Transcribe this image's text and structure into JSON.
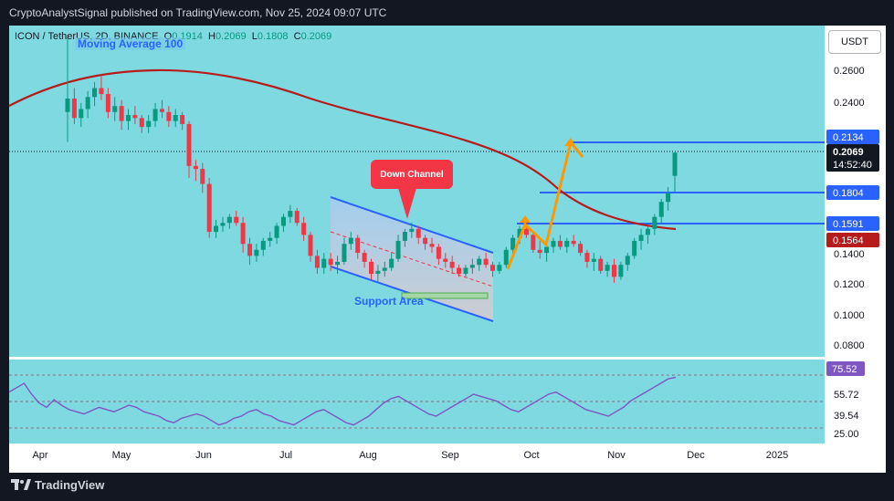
{
  "header": {
    "publisher_line": "CryptoAnalystSignal published on TradingView.com, Nov 25, 2024 09:07 UTC"
  },
  "legend": {
    "symbol": "ICON / TetherUS, 2D, BINANCE",
    "open_label": "O",
    "open": "0.1914",
    "high_label": "H",
    "high": "0.2069",
    "low_label": "L",
    "low": "0.1808",
    "close_label": "C",
    "close": "0.2069"
  },
  "indicator": {
    "ma_label": "Moving Average 100"
  },
  "currency_button": "USDT",
  "annotations": {
    "down_channel": "Down Channel",
    "support_area": "Support Area"
  },
  "price_axis": {
    "ticks": [
      "0.2600",
      "0.2400",
      "0.1400",
      "0.1200",
      "0.1000",
      "0.0800"
    ],
    "badges": {
      "level_top": "0.2134",
      "current_price": "0.2069",
      "countdown": "14:52:40",
      "level_mid": "0.1804",
      "level_low": "0.1591",
      "ma_value": "0.1564"
    }
  },
  "osc_axis": {
    "value_badge": "75.52",
    "ticks": [
      "55.72",
      "39.54",
      "25.00"
    ]
  },
  "time_axis": {
    "labels": [
      "Apr",
      "May",
      "Jun",
      "Jul",
      "Aug",
      "Sep",
      "Oct",
      "Nov",
      "Dec",
      "2025"
    ]
  },
  "footer": {
    "brand": "TradingView"
  },
  "chart_data": {
    "type": "candlestick",
    "symbol": "ICON / TetherUS",
    "interval": "2D",
    "exchange": "BINANCE",
    "y_range": [
      0.07,
      0.29
    ],
    "horizontal_levels": [
      0.2134,
      0.1804,
      0.1591
    ],
    "moving_average": {
      "name": "Moving Average 100",
      "last_value": 0.1564
    },
    "last_close": 0.2069,
    "candles_ohlc": [
      [
        0.234,
        0.284,
        0.214,
        0.243
      ],
      [
        0.243,
        0.25,
        0.226,
        0.23
      ],
      [
        0.23,
        0.24,
        0.224,
        0.236
      ],
      [
        0.236,
        0.248,
        0.23,
        0.244
      ],
      [
        0.244,
        0.254,
        0.238,
        0.25
      ],
      [
        0.25,
        0.258,
        0.242,
        0.246
      ],
      [
        0.246,
        0.25,
        0.23,
        0.234
      ],
      [
        0.234,
        0.244,
        0.228,
        0.238
      ],
      [
        0.238,
        0.242,
        0.222,
        0.228
      ],
      [
        0.228,
        0.236,
        0.222,
        0.232
      ],
      [
        0.232,
        0.238,
        0.226,
        0.23
      ],
      [
        0.23,
        0.232,
        0.22,
        0.224
      ],
      [
        0.224,
        0.232,
        0.22,
        0.228
      ],
      [
        0.228,
        0.24,
        0.224,
        0.236
      ],
      [
        0.236,
        0.242,
        0.23,
        0.234
      ],
      [
        0.234,
        0.238,
        0.224,
        0.228
      ],
      [
        0.228,
        0.236,
        0.224,
        0.232
      ],
      [
        0.232,
        0.234,
        0.222,
        0.226
      ],
      [
        0.226,
        0.228,
        0.19,
        0.198
      ],
      [
        0.198,
        0.202,
        0.188,
        0.196
      ],
      [
        0.196,
        0.2,
        0.18,
        0.186
      ],
      [
        0.186,
        0.19,
        0.15,
        0.154
      ],
      [
        0.154,
        0.162,
        0.15,
        0.158
      ],
      [
        0.158,
        0.164,
        0.154,
        0.16
      ],
      [
        0.16,
        0.166,
        0.156,
        0.164
      ],
      [
        0.164,
        0.168,
        0.158,
        0.16
      ],
      [
        0.16,
        0.164,
        0.14,
        0.146
      ],
      [
        0.146,
        0.15,
        0.132,
        0.138
      ],
      [
        0.138,
        0.146,
        0.134,
        0.142
      ],
      [
        0.142,
        0.15,
        0.138,
        0.148
      ],
      [
        0.148,
        0.154,
        0.144,
        0.15
      ],
      [
        0.15,
        0.16,
        0.146,
        0.158
      ],
      [
        0.158,
        0.166,
        0.154,
        0.164
      ],
      [
        0.164,
        0.172,
        0.16,
        0.168
      ],
      [
        0.168,
        0.17,
        0.158,
        0.16
      ],
      [
        0.16,
        0.164,
        0.148,
        0.152
      ],
      [
        0.152,
        0.154,
        0.134,
        0.138
      ],
      [
        0.138,
        0.142,
        0.126,
        0.13
      ],
      [
        0.13,
        0.14,
        0.126,
        0.136
      ],
      [
        0.136,
        0.14,
        0.128,
        0.132
      ],
      [
        0.132,
        0.138,
        0.126,
        0.134
      ],
      [
        0.134,
        0.15,
        0.132,
        0.146
      ],
      [
        0.146,
        0.154,
        0.142,
        0.15
      ],
      [
        0.15,
        0.152,
        0.136,
        0.14
      ],
      [
        0.14,
        0.142,
        0.13,
        0.134
      ],
      [
        0.134,
        0.136,
        0.122,
        0.126
      ],
      [
        0.126,
        0.132,
        0.12,
        0.128
      ],
      [
        0.128,
        0.134,
        0.124,
        0.13
      ],
      [
        0.13,
        0.14,
        0.128,
        0.136
      ],
      [
        0.136,
        0.152,
        0.134,
        0.148
      ],
      [
        0.148,
        0.156,
        0.144,
        0.154
      ],
      [
        0.154,
        0.16,
        0.15,
        0.156
      ],
      [
        0.156,
        0.158,
        0.146,
        0.15
      ],
      [
        0.15,
        0.152,
        0.142,
        0.146
      ],
      [
        0.146,
        0.15,
        0.14,
        0.144
      ],
      [
        0.144,
        0.146,
        0.132,
        0.136
      ],
      [
        0.136,
        0.14,
        0.13,
        0.134
      ],
      [
        0.134,
        0.138,
        0.126,
        0.13
      ],
      [
        0.13,
        0.132,
        0.124,
        0.126
      ],
      [
        0.126,
        0.132,
        0.124,
        0.13
      ],
      [
        0.13,
        0.136,
        0.126,
        0.132
      ],
      [
        0.132,
        0.138,
        0.128,
        0.136
      ],
      [
        0.136,
        0.14,
        0.13,
        0.132
      ],
      [
        0.132,
        0.134,
        0.124,
        0.128
      ],
      [
        0.128,
        0.134,
        0.126,
        0.132
      ],
      [
        0.132,
        0.144,
        0.13,
        0.142
      ],
      [
        0.142,
        0.152,
        0.138,
        0.15
      ],
      [
        0.15,
        0.158,
        0.146,
        0.156
      ],
      [
        0.156,
        0.16,
        0.15,
        0.152
      ],
      [
        0.152,
        0.154,
        0.14,
        0.142
      ],
      [
        0.142,
        0.148,
        0.136,
        0.14
      ],
      [
        0.14,
        0.146,
        0.134,
        0.144
      ],
      [
        0.144,
        0.15,
        0.14,
        0.148
      ],
      [
        0.148,
        0.152,
        0.142,
        0.144
      ],
      [
        0.144,
        0.15,
        0.14,
        0.148
      ],
      [
        0.148,
        0.152,
        0.144,
        0.146
      ],
      [
        0.146,
        0.148,
        0.138,
        0.14
      ],
      [
        0.14,
        0.142,
        0.13,
        0.134
      ],
      [
        0.134,
        0.14,
        0.128,
        0.136
      ],
      [
        0.136,
        0.138,
        0.126,
        0.128
      ],
      [
        0.128,
        0.134,
        0.124,
        0.132
      ],
      [
        0.132,
        0.136,
        0.12,
        0.124
      ],
      [
        0.124,
        0.134,
        0.122,
        0.132
      ],
      [
        0.132,
        0.14,
        0.128,
        0.138
      ],
      [
        0.138,
        0.15,
        0.136,
        0.148
      ],
      [
        0.148,
        0.156,
        0.142,
        0.152
      ],
      [
        0.152,
        0.158,
        0.146,
        0.156
      ],
      [
        0.156,
        0.166,
        0.152,
        0.164
      ],
      [
        0.164,
        0.176,
        0.16,
        0.174
      ],
      [
        0.174,
        0.184,
        0.168,
        0.18
      ],
      [
        0.1914,
        0.2069,
        0.1808,
        0.2069
      ]
    ]
  },
  "osc_data": {
    "value": 75.52,
    "levels": [
      70,
      50,
      30
    ],
    "series": [
      62,
      66,
      70,
      60,
      52,
      48,
      55,
      50,
      46,
      44,
      42,
      45,
      48,
      46,
      44,
      47,
      50,
      48,
      44,
      42,
      40,
      36,
      34,
      38,
      40,
      42,
      40,
      36,
      32,
      34,
      38,
      40,
      44,
      46,
      42,
      40,
      36,
      34,
      32,
      36,
      40,
      44,
      46,
      42,
      38,
      34,
      32,
      36,
      40,
      46,
      52,
      56,
      58,
      54,
      50,
      46,
      42,
      40,
      44,
      48,
      52,
      56,
      60,
      58,
      56,
      54,
      50,
      46,
      44,
      48,
      52,
      56,
      60,
      62,
      58,
      54,
      50,
      46,
      44,
      42,
      40,
      44,
      48,
      54,
      58,
      62,
      66,
      70,
      74,
      75.52
    ]
  }
}
